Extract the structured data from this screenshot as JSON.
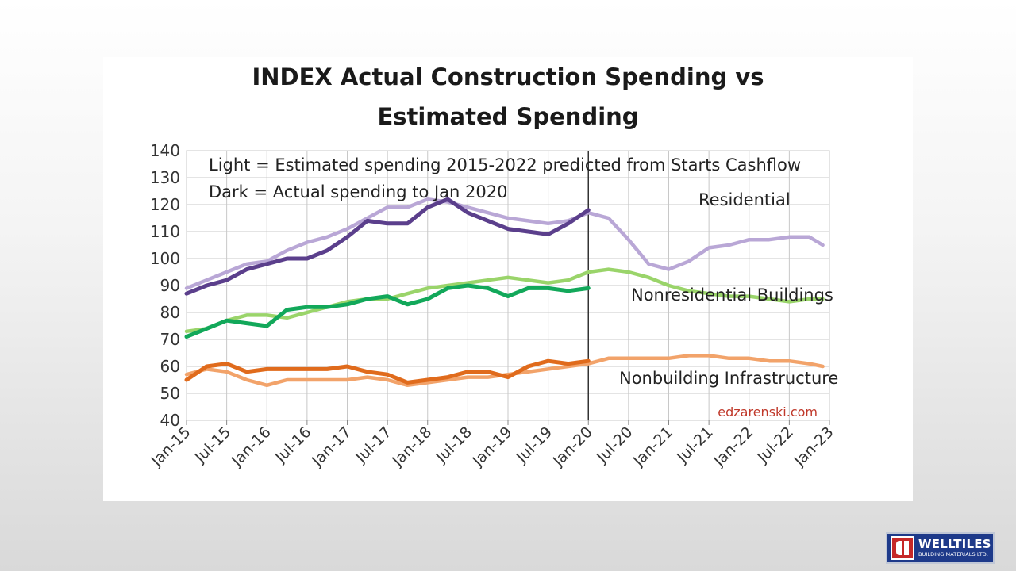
{
  "slide": {
    "logo": {
      "name": "WELLTILES",
      "subtitle": "BUILDING MATERIALS LTD."
    }
  },
  "chart_data": {
    "type": "line",
    "title": [
      "INDEX Actual Construction Spending vs",
      "Estimated Spending"
    ],
    "xlabel": "",
    "ylabel": "",
    "ylim": [
      40,
      140
    ],
    "yticks": [
      40,
      50,
      60,
      70,
      80,
      90,
      100,
      110,
      120,
      130,
      140
    ],
    "xlim": [
      "2015-01",
      "2023-01"
    ],
    "xticks": [
      "Jan-15",
      "Jul-15",
      "Jan-16",
      "Jul-16",
      "Jan-17",
      "Jul-17",
      "Jan-18",
      "Jul-18",
      "Jan-19",
      "Jul-19",
      "Jan-20",
      "Jul-20",
      "Jan-21",
      "Jul-21",
      "Jan-22",
      "Jul-22",
      "Jan-23"
    ],
    "grid": true,
    "vertical_marker": "2020-01",
    "annotations": [
      "Light = Estimated spending 2015-2022 predicted from Starts Cashflow",
      "Dark = Actual spending to  Jan 2020",
      "Residential",
      "Nonresidential Buildings",
      "Nonbuilding Infrastructure",
      "edzarenski.com"
    ],
    "colors": {
      "residential_estimated": "#b9a7d6",
      "residential_actual": "#5b3f8c",
      "nonresidential_estimated": "#9ad46a",
      "nonresidential_actual": "#12a85a",
      "infrastructure_estimated": "#f2a36a",
      "infrastructure_actual": "#e06b1c",
      "source": "#c0392b"
    },
    "series": [
      {
        "key": "residential_estimated",
        "x": [
          "2015-01",
          "2015-04",
          "2015-07",
          "2015-10",
          "2016-01",
          "2016-04",
          "2016-07",
          "2016-10",
          "2017-01",
          "2017-04",
          "2017-07",
          "2017-10",
          "2018-01",
          "2018-04",
          "2018-07",
          "2018-10",
          "2019-01",
          "2019-04",
          "2019-07",
          "2019-10",
          "2020-01",
          "2020-04",
          "2020-07",
          "2020-10",
          "2021-01",
          "2021-04",
          "2021-07",
          "2021-10",
          "2022-01",
          "2022-04",
          "2022-07",
          "2022-10",
          "2022-12"
        ],
        "values": [
          89,
          92,
          95,
          98,
          99,
          103,
          106,
          108,
          111,
          115,
          119,
          119,
          122,
          121,
          119,
          117,
          115,
          114,
          113,
          114,
          117,
          115,
          107,
          98,
          96,
          99,
          104,
          105,
          107,
          107,
          108,
          108,
          105
        ]
      },
      {
        "key": "residential_actual",
        "x": [
          "2015-01",
          "2015-04",
          "2015-07",
          "2015-10",
          "2016-01",
          "2016-04",
          "2016-07",
          "2016-10",
          "2017-01",
          "2017-04",
          "2017-07",
          "2017-10",
          "2018-01",
          "2018-04",
          "2018-07",
          "2018-10",
          "2019-01",
          "2019-04",
          "2019-07",
          "2019-10",
          "2020-01"
        ],
        "values": [
          87,
          90,
          92,
          96,
          98,
          100,
          100,
          103,
          108,
          114,
          113,
          113,
          119,
          122,
          117,
          114,
          111,
          110,
          109,
          113,
          118
        ]
      },
      {
        "key": "nonresidential_estimated",
        "x": [
          "2015-01",
          "2015-04",
          "2015-07",
          "2015-10",
          "2016-01",
          "2016-04",
          "2016-07",
          "2016-10",
          "2017-01",
          "2017-04",
          "2017-07",
          "2017-10",
          "2018-01",
          "2018-04",
          "2018-07",
          "2018-10",
          "2019-01",
          "2019-04",
          "2019-07",
          "2019-10",
          "2020-01",
          "2020-04",
          "2020-07",
          "2020-10",
          "2021-01",
          "2021-04",
          "2021-07",
          "2021-10",
          "2022-01",
          "2022-04",
          "2022-07",
          "2022-10",
          "2022-12"
        ],
        "values": [
          73,
          74,
          77,
          79,
          79,
          78,
          80,
          82,
          84,
          85,
          85,
          87,
          89,
          90,
          91,
          92,
          93,
          92,
          91,
          92,
          95,
          96,
          95,
          93,
          90,
          88,
          87,
          86,
          86,
          85,
          84,
          85,
          85
        ]
      },
      {
        "key": "nonresidential_actual",
        "x": [
          "2015-01",
          "2015-04",
          "2015-07",
          "2015-10",
          "2016-01",
          "2016-04",
          "2016-07",
          "2016-10",
          "2017-01",
          "2017-04",
          "2017-07",
          "2017-10",
          "2018-01",
          "2018-04",
          "2018-07",
          "2018-10",
          "2019-01",
          "2019-04",
          "2019-07",
          "2019-10",
          "2020-01"
        ],
        "values": [
          71,
          74,
          77,
          76,
          75,
          81,
          82,
          82,
          83,
          85,
          86,
          83,
          85,
          89,
          90,
          89,
          86,
          89,
          89,
          88,
          89
        ]
      },
      {
        "key": "infrastructure_estimated",
        "x": [
          "2015-01",
          "2015-04",
          "2015-07",
          "2015-10",
          "2016-01",
          "2016-04",
          "2016-07",
          "2016-10",
          "2017-01",
          "2017-04",
          "2017-07",
          "2017-10",
          "2018-01",
          "2018-04",
          "2018-07",
          "2018-10",
          "2019-01",
          "2019-04",
          "2019-07",
          "2019-10",
          "2020-01",
          "2020-04",
          "2020-07",
          "2020-10",
          "2021-01",
          "2021-04",
          "2021-07",
          "2021-10",
          "2022-01",
          "2022-04",
          "2022-07",
          "2022-10",
          "2022-12"
        ],
        "values": [
          57,
          59,
          58,
          55,
          53,
          55,
          55,
          55,
          55,
          56,
          55,
          53,
          54,
          55,
          56,
          56,
          57,
          58,
          59,
          60,
          61,
          63,
          63,
          63,
          63,
          64,
          64,
          63,
          63,
          62,
          62,
          61,
          60
        ]
      },
      {
        "key": "infrastructure_actual",
        "x": [
          "2015-01",
          "2015-04",
          "2015-07",
          "2015-10",
          "2016-01",
          "2016-04",
          "2016-07",
          "2016-10",
          "2017-01",
          "2017-04",
          "2017-07",
          "2017-10",
          "2018-01",
          "2018-04",
          "2018-07",
          "2018-10",
          "2019-01",
          "2019-04",
          "2019-07",
          "2019-10",
          "2020-01"
        ],
        "values": [
          55,
          60,
          61,
          58,
          59,
          59,
          59,
          59,
          60,
          58,
          57,
          54,
          55,
          56,
          58,
          58,
          56,
          60,
          62,
          61,
          62
        ]
      }
    ]
  }
}
